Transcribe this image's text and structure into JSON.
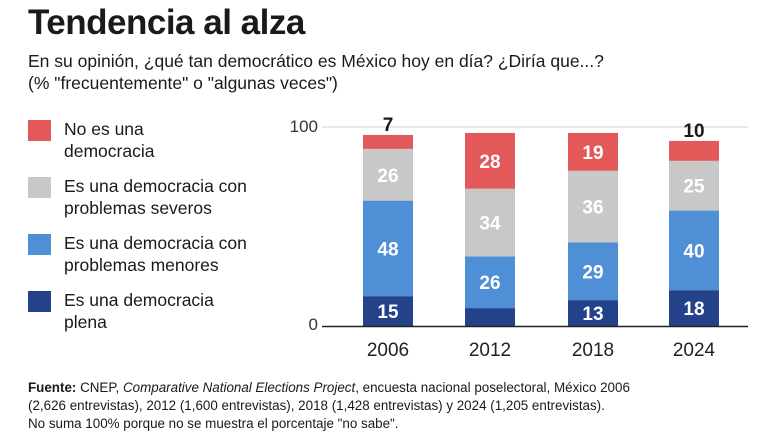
{
  "header": {
    "title": "Tendencia al alza",
    "subtitle_line1": "En su opinión, ¿qué tan democrático es México hoy en día? ¿Diría que...?",
    "subtitle_line2": "(% \"frecuentemente\" o \"algunas veces\")"
  },
  "colors": {
    "no_democracia": "#e35959",
    "problemas_severos": "#c8c8c8",
    "problemas_menores": "#4f8fd6",
    "plena": "#24428a"
  },
  "chart_data": {
    "type": "bar",
    "stacked": true,
    "categories": [
      "2006",
      "2012",
      "2018",
      "2024"
    ],
    "ylim": [
      0,
      100
    ],
    "y_ticks": [
      "0",
      "100"
    ],
    "legend_position": "left",
    "series": [
      {
        "name": "Es una democracia plena",
        "color_key": "plena",
        "values": [
          15,
          9,
          13,
          18
        ]
      },
      {
        "name": "Es una democracia con problemas menores",
        "color_key": "problemas_menores",
        "values": [
          48,
          26,
          29,
          40
        ]
      },
      {
        "name": "Es una democracia con problemas severos",
        "color_key": "problemas_severos",
        "values": [
          26,
          34,
          36,
          25
        ]
      },
      {
        "name": "No es una democracia",
        "color_key": "no_democracia",
        "values": [
          7,
          28,
          19,
          10
        ]
      }
    ]
  },
  "legend": [
    {
      "line1": "No es una",
      "line2": "democracia",
      "color_key": "no_democracia"
    },
    {
      "line1": "Es una democracia con",
      "line2": "problemas severos",
      "color_key": "problemas_severos"
    },
    {
      "line1": "Es una democracia con",
      "line2": "problemas menores",
      "color_key": "problemas_menores"
    },
    {
      "line1": "Es una democracia",
      "line2": "plena",
      "color_key": "plena"
    }
  ],
  "footer": {
    "label": "Fuente:",
    "text_a": " CNEP, ",
    "project": "Comparative National Elections Project",
    "text_b": ", encuesta nacional poselectoral, México 2006",
    "line2": "(2,626 entrevistas), 2012 (1,600 entrevistas), 2018 (1,428 entrevistas) y 2024 (1,205 entrevistas).",
    "line3": "No suma 100% porque no se muestra el porcentaje \"no sabe\"."
  }
}
